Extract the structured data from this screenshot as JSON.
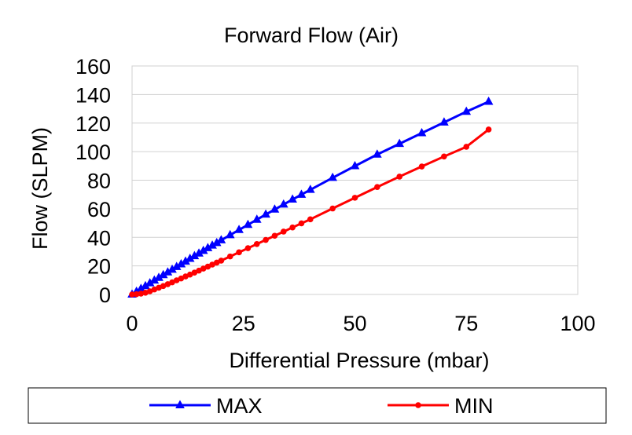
{
  "chart_data": {
    "type": "line",
    "title": "Forward Flow (Air)",
    "xlabel": "Differential Pressure (mbar)",
    "ylabel": "Flow (SLPM)",
    "xlim": [
      0,
      100
    ],
    "ylim": [
      0,
      160
    ],
    "x_ticks": [
      0,
      25,
      50,
      75,
      100
    ],
    "y_ticks": [
      0,
      20,
      40,
      60,
      80,
      100,
      120,
      140,
      160
    ],
    "grid": true,
    "legend_position": "bottom",
    "series": [
      {
        "name": "MAX",
        "color": "#0000ff",
        "marker": "triangle",
        "x": [
          0,
          1,
          2,
          3,
          4,
          5,
          6,
          7,
          8,
          9,
          10,
          11,
          12,
          13,
          14,
          15,
          16,
          17,
          18,
          19,
          20,
          22,
          24,
          26,
          28,
          30,
          32,
          34,
          36,
          38,
          40,
          45,
          50,
          55,
          60,
          65,
          70,
          75,
          80
        ],
        "y": [
          0,
          2.0,
          4.0,
          5.9,
          7.9,
          9.8,
          11.7,
          13.6,
          15.5,
          17.4,
          19.3,
          21.2,
          23.1,
          25.0,
          26.9,
          28.7,
          30.6,
          32.5,
          34.3,
          36.1,
          38.0,
          41.6,
          45.2,
          48.8,
          52.4,
          56.0,
          59.5,
          63.0,
          66.5,
          69.9,
          73.3,
          81.7,
          89.9,
          98.0,
          105.5,
          113.0,
          120.5,
          128.0,
          135.0
        ]
      },
      {
        "name": "MIN",
        "color": "#ff0000",
        "marker": "circle",
        "x": [
          0,
          1,
          2,
          3,
          4,
          5,
          6,
          7,
          8,
          9,
          10,
          11,
          12,
          13,
          14,
          15,
          16,
          17,
          18,
          19,
          20,
          22,
          24,
          26,
          28,
          30,
          32,
          34,
          36,
          38,
          40,
          45,
          50,
          55,
          60,
          65,
          70,
          75,
          80
        ],
        "y": [
          0,
          0.2,
          0.6,
          1.2,
          2.2,
          3.5,
          4.7,
          5.9,
          7.2,
          8.5,
          9.9,
          11.2,
          12.6,
          13.9,
          15.3,
          16.7,
          18.1,
          19.5,
          20.9,
          22.3,
          23.7,
          26.6,
          29.5,
          32.4,
          35.3,
          38.2,
          41.1,
          44.0,
          46.9,
          49.8,
          52.6,
          60.2,
          67.7,
          75.2,
          82.5,
          89.6,
          96.6,
          103.4,
          115.5
        ]
      }
    ]
  }
}
